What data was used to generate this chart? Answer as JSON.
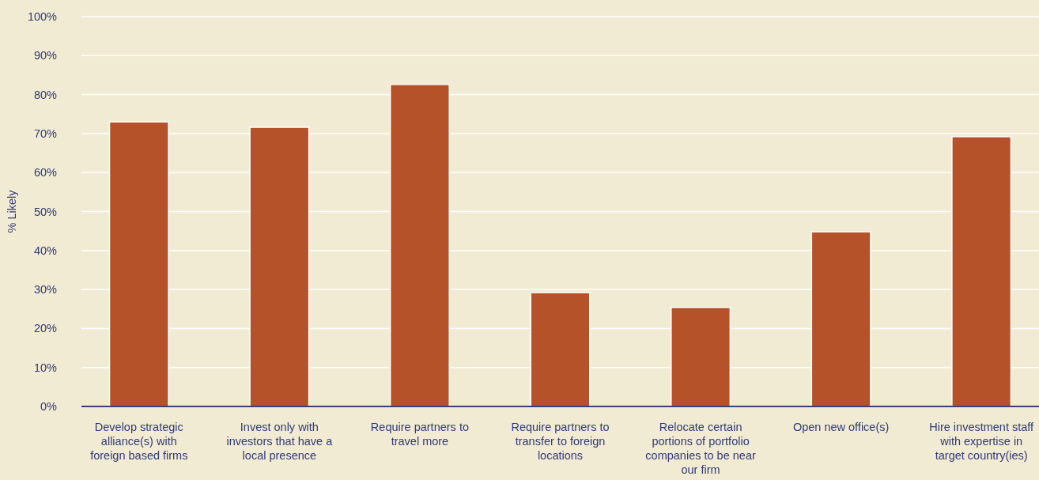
{
  "chart_data": {
    "type": "bar",
    "ylabel": "% Likely",
    "categories": [
      "Develop strategic alliance(s) with foreign based firms",
      "Invest only with investors that have a local presence",
      "Require partners to travel more",
      "Require partners to transfer to foreign locations",
      "Relocate certain portions of portfolio companies to be near our firm",
      "Open new office(s)",
      "Hire investment staff with expertise in target country(ies)"
    ],
    "values": [
      73,
      71.6,
      82.6,
      29.2,
      25.4,
      44.8,
      69.2
    ],
    "color": "#b5522a",
    "ylim": [
      0,
      100
    ],
    "yticks": [
      {
        "value": 0,
        "label": "0%"
      },
      {
        "value": 10,
        "label": "10%"
      },
      {
        "value": 20,
        "label": "20%"
      },
      {
        "value": 30,
        "label": "30%"
      },
      {
        "value": 40,
        "label": "40%"
      },
      {
        "value": 50,
        "label": "50%"
      },
      {
        "value": 60,
        "label": "60%"
      },
      {
        "value": 70,
        "label": "70%"
      },
      {
        "value": 80,
        "label": "80%"
      },
      {
        "value": 90,
        "label": "90%"
      },
      {
        "value": 100,
        "label": "100%"
      }
    ],
    "grid": "y"
  }
}
